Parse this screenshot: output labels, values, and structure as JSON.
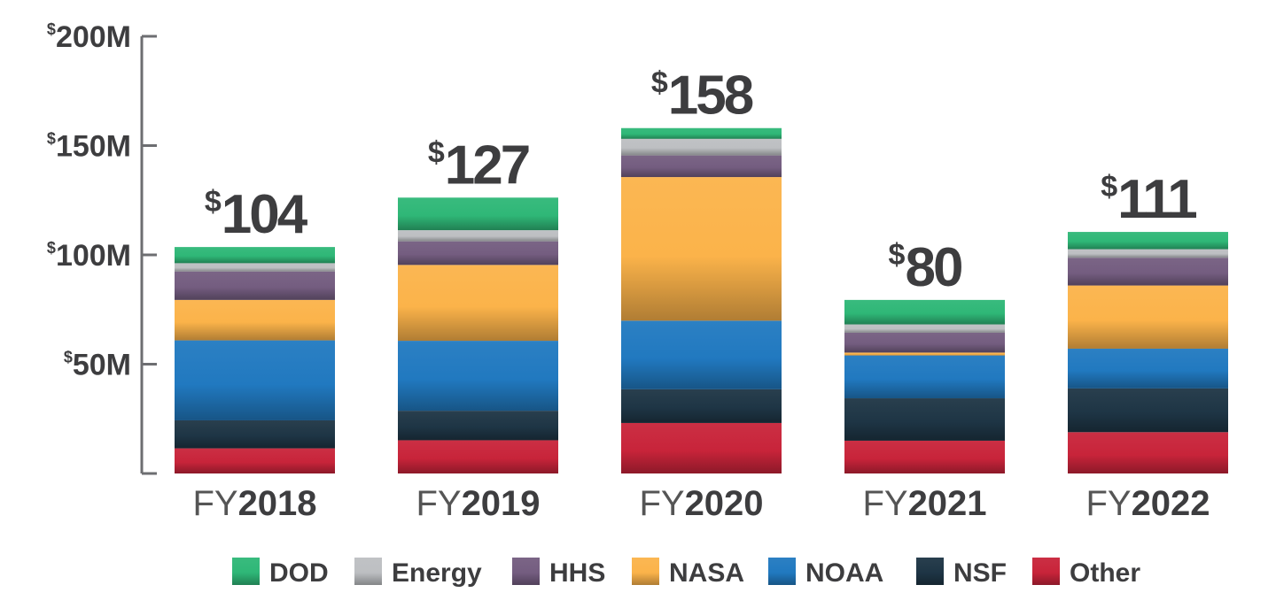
{
  "chart_data": {
    "type": "bar",
    "stacked": true,
    "categories": [
      "2018",
      "2019",
      "2020",
      "2021",
      "2022"
    ],
    "category_prefix": "FY",
    "totals": [
      "104",
      "127",
      "158",
      "80",
      "111"
    ],
    "currency_symbol": "$",
    "ylim": [
      0,
      200
    ],
    "yticks": [
      "200M",
      "150M",
      "100M",
      "50M"
    ],
    "ytick_values": [
      200,
      150,
      100,
      50
    ],
    "grid": false,
    "legend_position": "bottom",
    "series": [
      {
        "name": "Other",
        "color": "#c8243a",
        "values": [
          11.5,
          15.2,
          23.1,
          15.0,
          18.9
        ]
      },
      {
        "name": "NSF",
        "color": "#1e3545",
        "values": [
          12.8,
          13.5,
          15.4,
          19.4,
          20.0
        ]
      },
      {
        "name": "NOAA",
        "color": "#2179c0",
        "values": [
          36.6,
          32.0,
          31.4,
          19.6,
          18.2
        ]
      },
      {
        "name": "NASA",
        "color": "#fbb34a",
        "values": [
          18.5,
          34.7,
          65.7,
          1.3,
          28.9
        ]
      },
      {
        "name": "HHS",
        "color": "#745d80",
        "values": [
          13.0,
          10.8,
          9.9,
          9.1,
          12.7
        ]
      },
      {
        "name": "Energy",
        "color": "#bdbfc2",
        "values": [
          3.8,
          5.1,
          7.6,
          3.8,
          3.9
        ]
      },
      {
        "name": "DOD",
        "color": "#2fb777",
        "values": [
          7.4,
          14.9,
          4.9,
          11.2,
          7.9
        ]
      }
    ],
    "legend_order": [
      "DOD",
      "Energy",
      "HHS",
      "NASA",
      "NOAA",
      "NSF",
      "Other"
    ]
  }
}
